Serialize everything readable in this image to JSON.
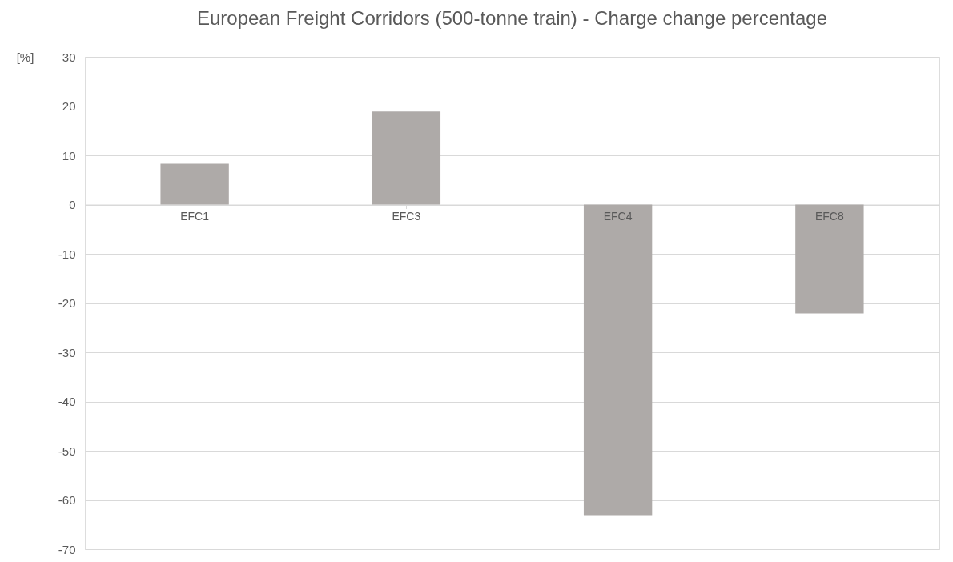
{
  "chart_data": {
    "type": "bar",
    "title": "European Freight Corridors (500-tonne train) - Charge change percentage",
    "ylabel": "[%]",
    "categories": [
      "EFC1",
      "EFC3",
      "EFC4",
      "EFC8"
    ],
    "values": [
      8.3,
      18.9,
      -63.1,
      -22.1
    ],
    "color": "#aeaaa8",
    "ylim": [
      -70,
      30
    ],
    "yticks": [
      -70,
      -60,
      -50,
      -40,
      -30,
      -20,
      -10,
      0,
      10,
      20,
      30
    ],
    "grid": "y"
  }
}
